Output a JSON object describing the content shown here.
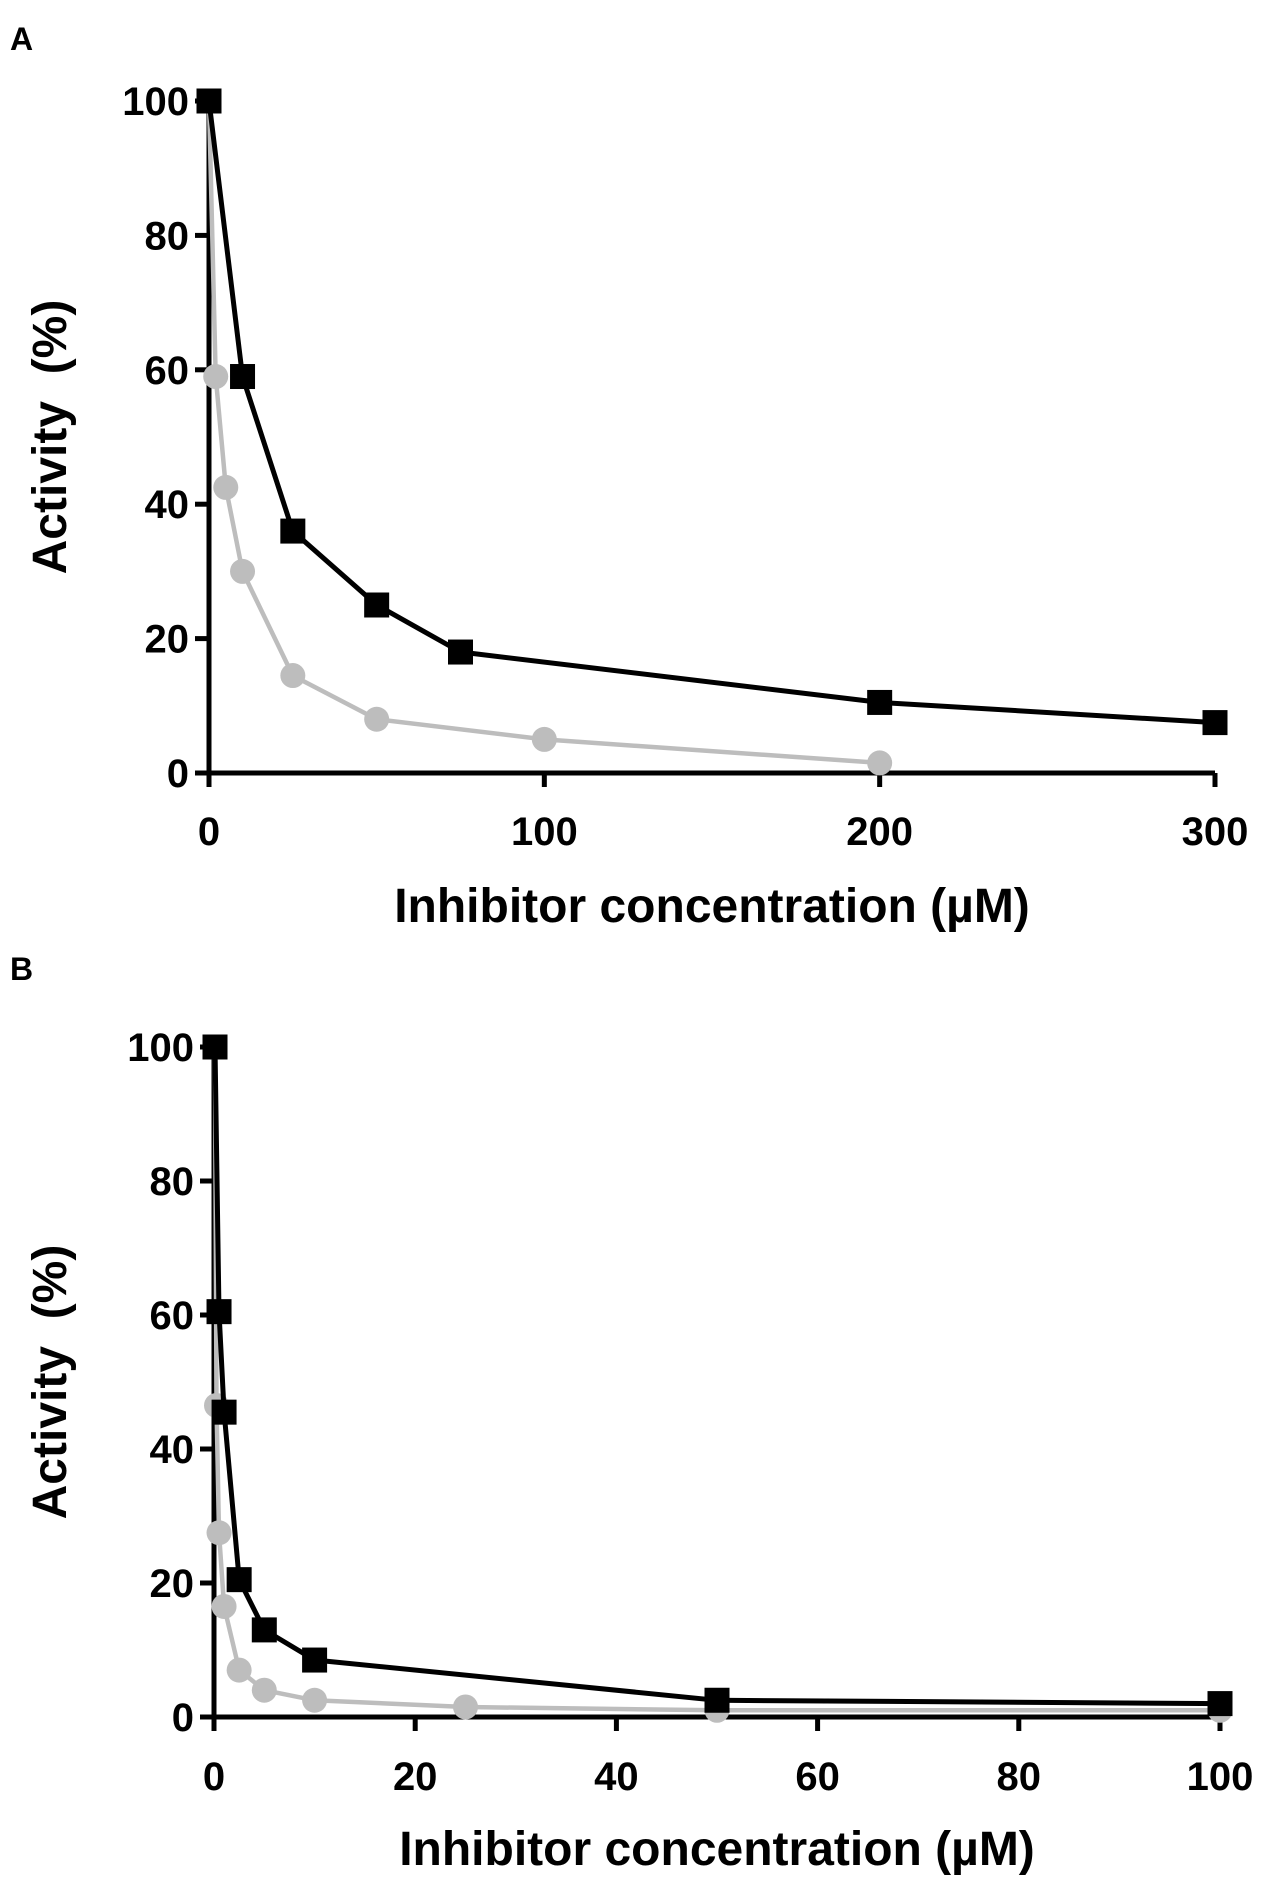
{
  "colors": {
    "series_black": "#000000",
    "series_gray": "#bdbdbd",
    "background": "#ffffff"
  },
  "chart_data": [
    {
      "panel_label": "A",
      "type": "line",
      "title": "",
      "xlabel": "Inhibitor concentration (µM)",
      "ylabel": "Activity  (%)",
      "xlim": [
        0,
        300
      ],
      "ylim": [
        0,
        100
      ],
      "xticks": [
        0,
        100,
        200,
        300
      ],
      "yticks": [
        0,
        20,
        40,
        60,
        80,
        100
      ],
      "grid": false,
      "legend": "none",
      "series": [
        {
          "marker": "square",
          "color": "#000000",
          "points": [
            [
              0,
              100
            ],
            [
              10,
              59
            ],
            [
              25,
              36
            ],
            [
              50,
              25
            ],
            [
              75,
              18
            ],
            [
              200,
              10.5
            ],
            [
              300,
              7.5
            ]
          ]
        },
        {
          "marker": "circle",
          "color": "#bdbdbd",
          "points": [
            [
              0,
              100
            ],
            [
              2,
              59
            ],
            [
              5,
              42.5
            ],
            [
              10,
              30
            ],
            [
              25,
              14.5
            ],
            [
              50,
              8
            ],
            [
              100,
              5
            ],
            [
              200,
              1.5
            ]
          ]
        }
      ]
    },
    {
      "panel_label": "B",
      "type": "line",
      "title": "",
      "xlabel": "Inhibitor concentration (µM)",
      "ylabel": "Activity  (%)",
      "xlim": [
        0,
        100
      ],
      "ylim": [
        0,
        100
      ],
      "xticks": [
        0,
        20,
        40,
        60,
        80,
        100
      ],
      "yticks": [
        0,
        20,
        40,
        60,
        80,
        100
      ],
      "grid": false,
      "legend": "none",
      "series": [
        {
          "marker": "square",
          "color": "#000000",
          "points": [
            [
              0.1,
              100
            ],
            [
              0.5,
              60.5
            ],
            [
              1,
              45.5
            ],
            [
              2.5,
              20.5
            ],
            [
              5,
              13
            ],
            [
              10,
              8.5
            ],
            [
              50,
              2.5
            ],
            [
              100,
              2
            ]
          ]
        },
        {
          "marker": "circle",
          "color": "#bdbdbd",
          "points": [
            [
              0.1,
              100
            ],
            [
              0.25,
              46.5
            ],
            [
              0.5,
              27.5
            ],
            [
              1,
              16.5
            ],
            [
              2.5,
              7
            ],
            [
              5,
              4
            ],
            [
              10,
              2.5
            ],
            [
              25,
              1.5
            ],
            [
              50,
              1
            ],
            [
              100,
              1
            ]
          ]
        }
      ]
    }
  ]
}
